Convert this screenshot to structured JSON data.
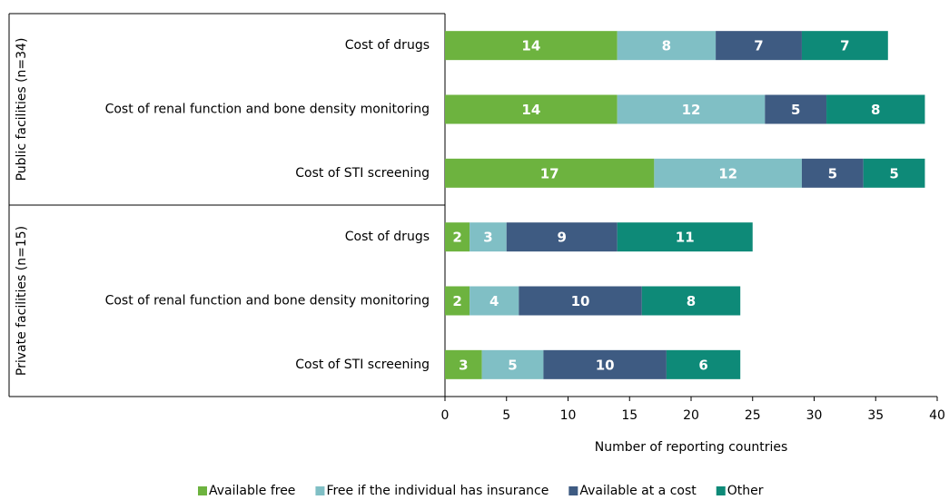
{
  "chart_data": {
    "type": "bar",
    "orientation": "horizontal",
    "stacked": true,
    "groups": [
      "Public facilities (n=34)",
      "Private facilities (n=15)"
    ],
    "categories": [
      "Cost of drugs",
      "Cost of renal function and bone density monitoring",
      "Cost of STI screening",
      "Cost of drugs",
      "Cost of renal function and bone density monitoring",
      "Cost of STI screening"
    ],
    "series": [
      {
        "name": "Available free",
        "color": "#6db33f",
        "values": [
          14,
          14,
          17,
          2,
          2,
          3
        ]
      },
      {
        "name": "Free if the individual has insurance",
        "color": "#80bfc5",
        "values": [
          8,
          12,
          12,
          3,
          4,
          5
        ]
      },
      {
        "name": "Available at a cost",
        "color": "#3e5b82",
        "values": [
          7,
          5,
          5,
          9,
          10,
          10
        ]
      },
      {
        "name": "Other",
        "color": "#0e8a78",
        "values": [
          7,
          8,
          5,
          11,
          8,
          6
        ]
      }
    ],
    "xlabel": "Number of reporting countries",
    "xlim": [
      0,
      40
    ],
    "xticks": [
      0,
      5,
      10,
      15,
      20,
      25,
      30,
      35,
      40
    ],
    "legend": "bottom"
  }
}
